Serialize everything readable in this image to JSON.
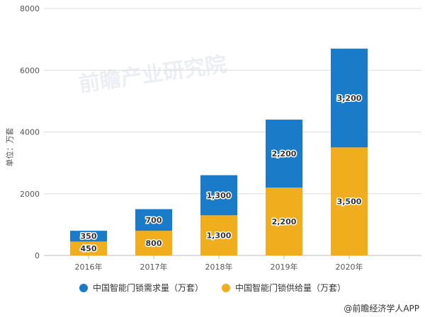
{
  "chart_data": {
    "type": "bar",
    "stacked": true,
    "categories": [
      "2016年",
      "2017年",
      "2018年",
      "2019年",
      "2020年"
    ],
    "series": [
      {
        "name": "中国智能门锁供给量（万套）",
        "color": "#f0ad1e",
        "values": [
          450,
          800,
          1300,
          2200,
          3500
        ],
        "labels": [
          "450",
          "800",
          "1,300",
          "2,200",
          "3,500"
        ]
      },
      {
        "name": "中国智能门锁需求量（万套）",
        "color": "#1a7bc8",
        "values": [
          350,
          700,
          1300,
          2200,
          3200
        ],
        "labels": [
          "350",
          "700",
          "1,300",
          "2,200",
          "3,200"
        ]
      }
    ],
    "ylabel": "单位：万套",
    "ylim": [
      0,
      8000
    ],
    "yticks": [
      0,
      2000,
      4000,
      6000,
      8000
    ],
    "grid": true,
    "legend": "bottom"
  },
  "watermark": "前瞻产业研究院",
  "credit": "@前瞻经济学人APP"
}
